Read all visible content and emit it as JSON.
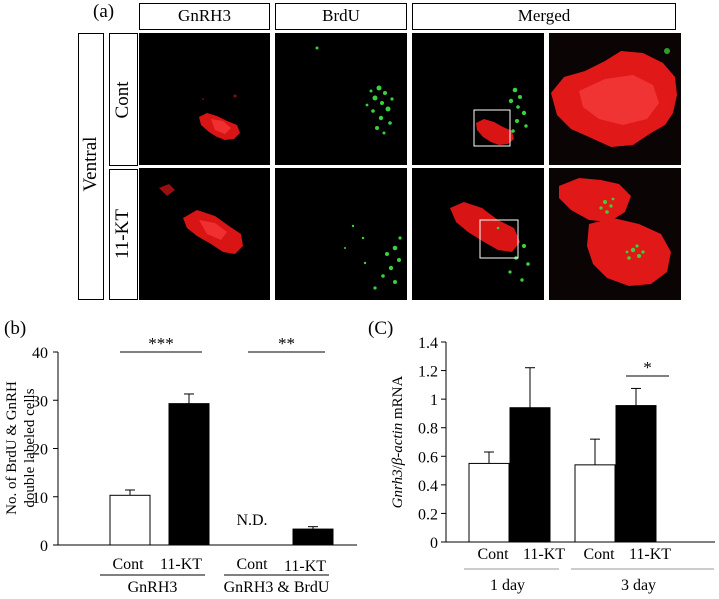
{
  "figure": {
    "panel_a": {
      "letter": "(a)",
      "column_headers": [
        "GnRH3",
        "BrdU",
        "Merged"
      ],
      "group_label": "Ventral",
      "row_labels": [
        "Cont",
        "11-KT"
      ]
    },
    "panel_b": {
      "letter": "(b)"
    },
    "panel_c": {
      "letter": "(C)"
    }
  },
  "chart_data": [
    {
      "type": "bar",
      "ylabel": "No. of BrdU & GnRH double labeled cells",
      "ylim": [
        0,
        40
      ],
      "yticks": [
        0,
        10,
        20,
        30,
        40
      ],
      "groups": [
        {
          "label": "GnRH3",
          "categories": [
            "Cont",
            "11-KT"
          ],
          "values": [
            10.3,
            29.3
          ],
          "errors": [
            1.1,
            2.0
          ],
          "fills": [
            "#ffffff",
            "#000000"
          ]
        },
        {
          "label": "GnRH3 & BrdU",
          "categories": [
            "Cont",
            "11-KT"
          ],
          "values": [
            0,
            3.3
          ],
          "errors": [
            0,
            0.5
          ],
          "fills": [
            "#ffffff",
            "#000000"
          ],
          "annotations": [
            "N.D.",
            ""
          ]
        }
      ],
      "significance": [
        "***",
        "**"
      ]
    },
    {
      "type": "bar",
      "ylabel_parts": [
        "Gnrh3",
        "/",
        "β-actin",
        " mRNA"
      ],
      "ylim": [
        0,
        1.4
      ],
      "yticks": [
        "0",
        "0.2",
        "0.4",
        "0.6",
        "0.8",
        "1",
        "1.2",
        "1.4"
      ],
      "groups": [
        {
          "label": "1 day",
          "categories": [
            "Cont",
            "11-KT"
          ],
          "values": [
            0.55,
            0.94
          ],
          "errors": [
            0.08,
            0.28
          ],
          "fills": [
            "#ffffff",
            "#000000"
          ]
        },
        {
          "label": "3 day",
          "categories": [
            "Cont",
            "11-KT"
          ],
          "values": [
            0.54,
            0.955
          ],
          "errors": [
            0.18,
            0.12
          ],
          "fills": [
            "#ffffff",
            "#000000"
          ]
        }
      ],
      "significance": [
        "",
        "*"
      ]
    }
  ]
}
